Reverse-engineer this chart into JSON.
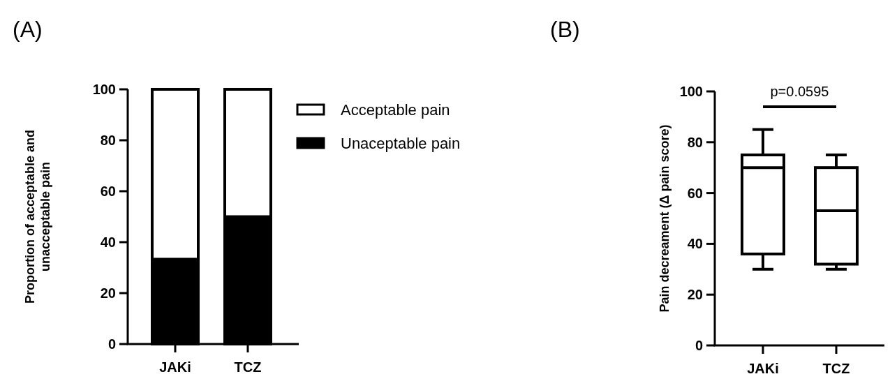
{
  "chart_data": [
    {
      "type": "bar",
      "title": "(A)",
      "stacked": true,
      "categories": [
        "JAKi",
        "TCZ"
      ],
      "ylabel": "Proportion of acceptable and unacceptable pain",
      "ylim": [
        0,
        100
      ],
      "yticks": [
        0,
        20,
        40,
        60,
        80,
        100
      ],
      "legend": "right",
      "series": [
        {
          "name": "Unaceptable pain",
          "color": "#000000",
          "values": [
            33.3,
            50
          ]
        },
        {
          "name": "Acceptable pain",
          "color": "#ffffff",
          "values": [
            66.7,
            50
          ]
        }
      ]
    },
    {
      "type": "box",
      "title": "(B)",
      "categories": [
        "JAKi",
        "TCZ"
      ],
      "ylabel": "Pain decreament (Δ pain score)",
      "ylim": [
        0,
        100
      ],
      "yticks": [
        0,
        20,
        40,
        60,
        80,
        100
      ],
      "boxes": [
        {
          "low": 30,
          "q1": 36,
          "median": 70,
          "q3": 75,
          "high": 85
        },
        {
          "low": 30,
          "q1": 32,
          "median": 53,
          "q3": 70,
          "high": 75
        }
      ],
      "annotations": [
        "p=0.0595"
      ]
    }
  ]
}
